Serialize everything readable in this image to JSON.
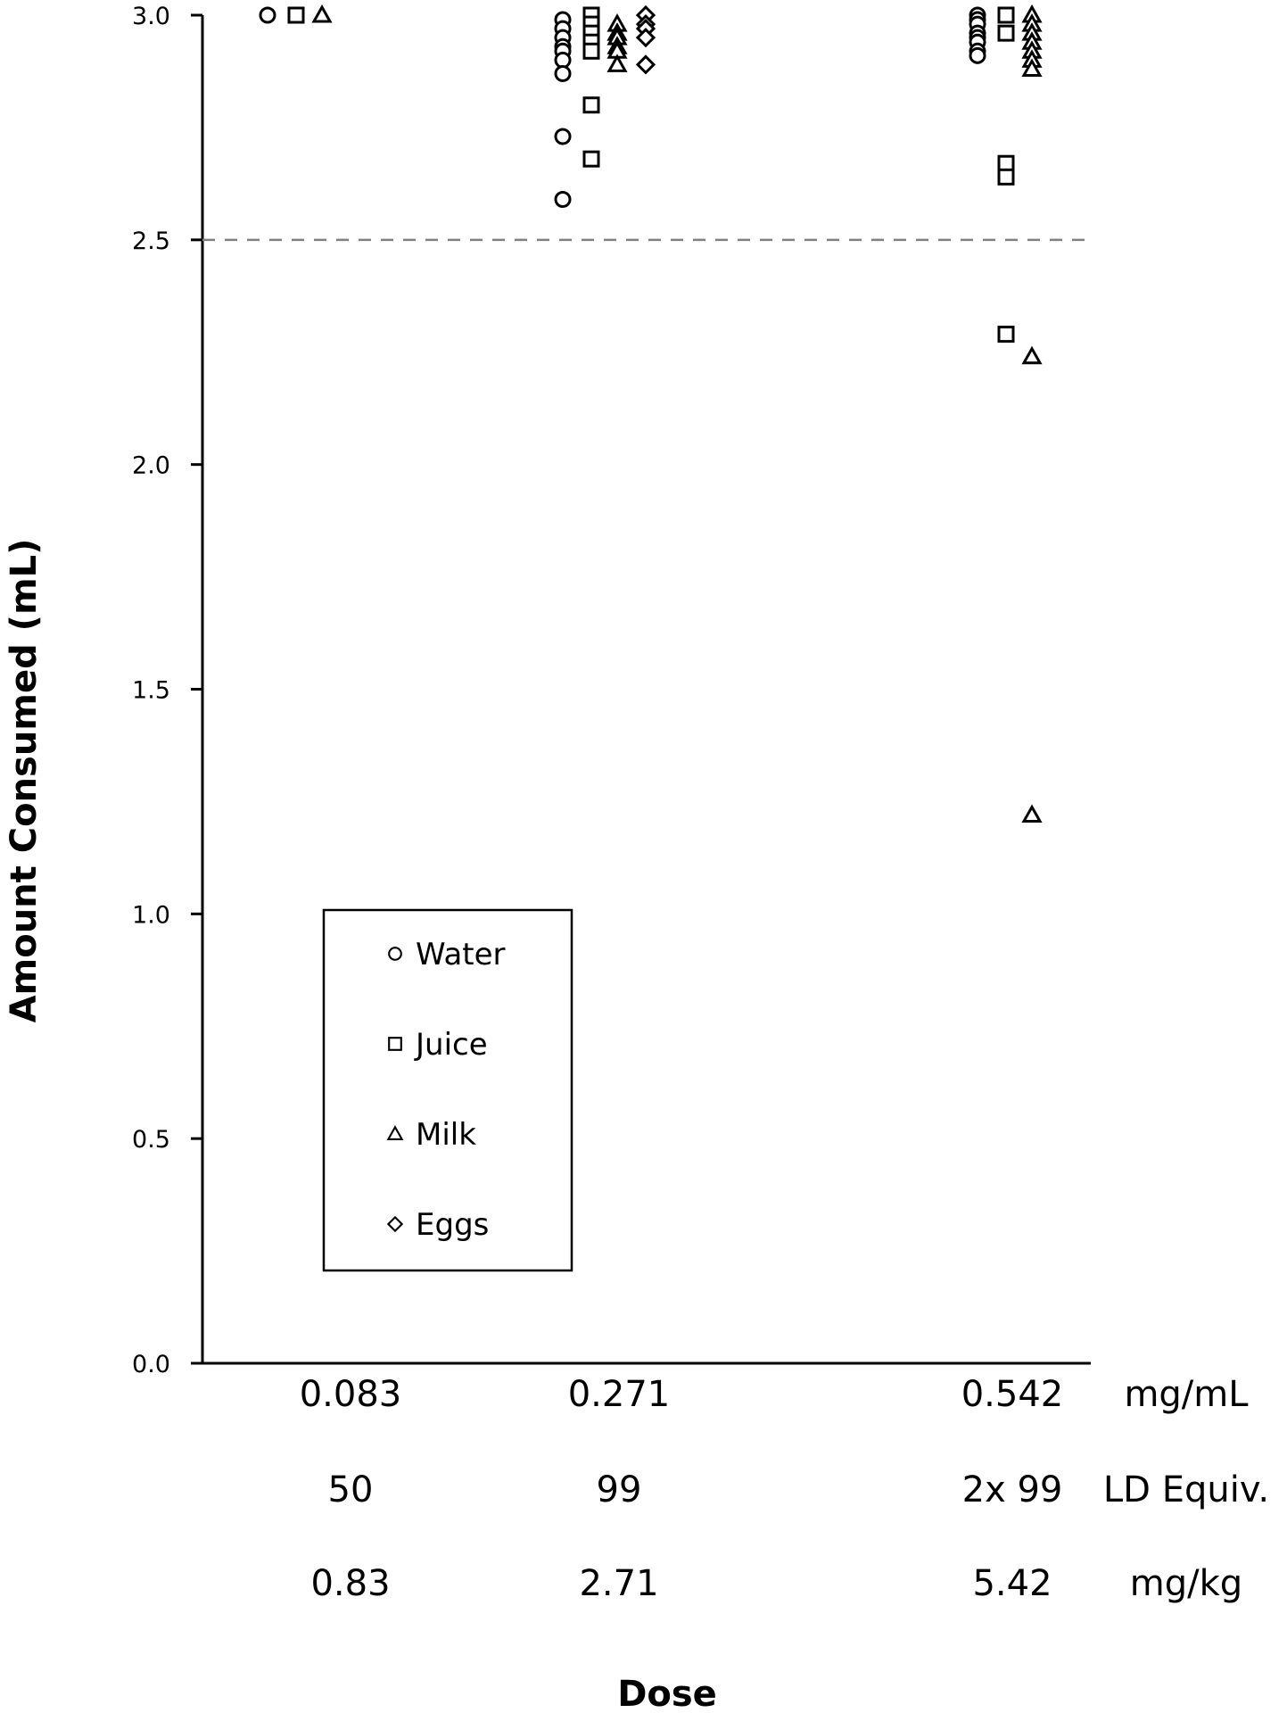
{
  "chart_data": {
    "type": "scatter",
    "title": "",
    "xlabel": "Dose",
    "ylabel": "Amount Consumed (mL)",
    "ylim": [
      0,
      3.0
    ],
    "yticks": [
      "0.0",
      "0.5",
      "1.0",
      "1.5",
      "2.0",
      "2.5",
      "3.0"
    ],
    "grid": false,
    "reference_line": {
      "y": 2.5,
      "style": "dashed",
      "color": "#808080"
    },
    "legend": {
      "placement": "lower-left",
      "entries": [
        "Water",
        "Juice",
        "Milk",
        "Eggs"
      ]
    },
    "dose_rows": [
      {
        "unit": "mg/mL",
        "values": [
          "0.083",
          "0.271",
          "0.542"
        ]
      },
      {
        "unit": "LD Equiv.",
        "values": [
          "50",
          "99",
          "2x 99"
        ]
      },
      {
        "unit": "mg/kg",
        "values": [
          "0.83",
          "2.71",
          "5.42"
        ]
      }
    ],
    "categories": [
      "0.083",
      "0.271",
      "0.542"
    ],
    "series": [
      {
        "name": "Water",
        "marker": "circle",
        "values": [
          [
            3.0
          ],
          [
            2.99,
            2.97,
            2.95,
            2.93,
            2.92,
            2.9,
            2.87,
            2.73,
            2.59
          ],
          [
            3.0,
            2.99,
            2.98,
            2.96,
            2.95,
            2.94,
            2.92,
            2.91
          ]
        ]
      },
      {
        "name": "Juice",
        "marker": "square",
        "values": [
          [
            3.0
          ],
          [
            3.0,
            2.98,
            2.96,
            2.94,
            2.92,
            2.8,
            2.68
          ],
          [
            3.0,
            2.96,
            2.67,
            2.64,
            2.29
          ]
        ]
      },
      {
        "name": "Milk",
        "marker": "triangle",
        "values": [
          [
            3.0
          ],
          [
            2.98,
            2.96,
            2.95,
            2.93,
            2.92,
            2.89
          ],
          [
            3.0,
            2.98,
            2.96,
            2.94,
            2.92,
            2.9,
            2.88,
            2.24,
            1.22
          ]
        ]
      },
      {
        "name": "Eggs",
        "marker": "diamond",
        "values": [
          [],
          [
            3.0,
            2.98,
            2.97,
            2.95,
            2.89
          ],
          []
        ]
      }
    ]
  }
}
